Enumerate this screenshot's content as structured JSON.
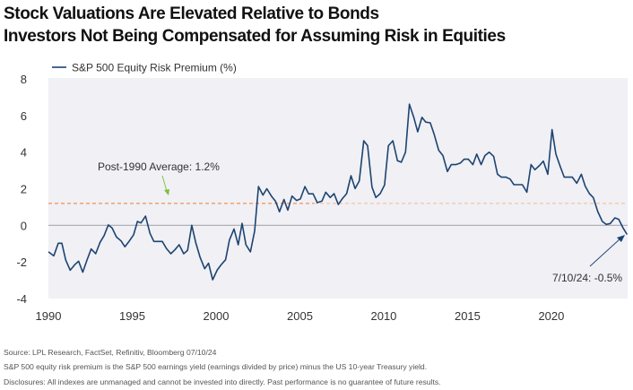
{
  "header": {
    "title": "Stock Valuations Are Elevated Relative to Bonds",
    "subtitle": "Investors Not Being Compensated for Assuming Risk in Equities"
  },
  "footer": {
    "source": "Source: LPL Research, FactSet, Refinitiv, Bloomberg 07/10/24",
    "note": "S&P 500 equity risk premium is the S&P 500 earnings yield (earnings divided by price) minus the US 10-year Treasury yield.",
    "disclosures": "Disclosures: All indexes are unmanaged and cannot be invested into directly. Past performance is no guarantee of future results."
  },
  "chart_data": {
    "type": "line",
    "xlim": [
      1990,
      2024.55
    ],
    "ylim": [
      -4,
      8
    ],
    "x_ticks": [
      "1990",
      "1995",
      "2000",
      "2005",
      "2010",
      "2015",
      "2020"
    ],
    "y_ticks": [
      "8",
      "6",
      "4",
      "2",
      "0",
      "-2",
      "-4"
    ],
    "grid": false,
    "legend_position": "top-left",
    "colors": {
      "series": "#1d4470",
      "average": "#f07a2a",
      "average_light": "#f5b98f",
      "zero": "#a8a8ae",
      "plot_bg": "#f0f0f5",
      "arrow_avg": "#7bbf3a"
    },
    "series": [
      {
        "name": "S&P 500 Equity Risk Premium (%)",
        "x": [
          1990.0,
          1990.32,
          1990.59,
          1990.8,
          1991.03,
          1991.3,
          1991.57,
          1991.8,
          1992.05,
          1992.3,
          1992.55,
          1992.82,
          1993.08,
          1993.32,
          1993.57,
          1993.8,
          1994.06,
          1994.33,
          1994.56,
          1994.83,
          1995.08,
          1995.31,
          1995.52,
          1995.79,
          1996.06,
          1996.29,
          1996.79,
          1997.04,
          1997.3,
          1997.54,
          1997.8,
          1998.07,
          1998.3,
          1998.55,
          1998.79,
          1999.05,
          1999.32,
          1999.55,
          1999.8,
          2000.07,
          2000.3,
          2000.57,
          2000.8,
          2001.07,
          2001.32,
          2001.55,
          2001.78,
          2002.05,
          2002.3,
          2002.53,
          2002.8,
          2003.03,
          2003.3,
          2003.55,
          2003.78,
          2004.05,
          2004.28,
          2004.53,
          2004.8,
          2005.03,
          2005.3,
          2005.52,
          2005.79,
          2006.04,
          2006.31,
          2006.54,
          2006.81,
          2007.04,
          2007.29,
          2007.52,
          2007.79,
          2008.05,
          2008.29,
          2008.54,
          2008.81,
          2009.04,
          2009.3,
          2009.53,
          2009.79,
          2010.05,
          2010.28,
          2010.55,
          2010.82,
          2011.05,
          2011.3,
          2011.53,
          2011.8,
          2012.03,
          2012.28,
          2012.51,
          2012.78,
          2013.01,
          2013.28,
          2013.53,
          2013.8,
          2014.03,
          2014.3,
          2014.57,
          2014.8,
          2015.05,
          2015.32,
          2015.55,
          2015.81,
          2016.04,
          2016.29,
          2016.56,
          2016.79,
          2017.02,
          2017.29,
          2017.54,
          2017.77,
          2018.27,
          2018.54,
          2018.79,
          2019.02,
          2019.29,
          2019.52,
          2019.79,
          2020.04,
          2020.27,
          2020.54,
          2020.77,
          2021.25,
          2021.52,
          2021.79,
          2022.02,
          2022.27,
          2022.5,
          2022.77,
          2023.04,
          2023.27,
          2023.52,
          2023.79,
          2024.02,
          2024.29,
          2024.52
        ],
        "y": [
          -1.45,
          -1.67,
          -0.98,
          -0.98,
          -1.9,
          -2.45,
          -2.15,
          -1.96,
          -2.56,
          -1.9,
          -1.29,
          -1.55,
          -0.93,
          -0.56,
          0.02,
          -0.15,
          -0.64,
          -0.85,
          -1.17,
          -0.85,
          -0.52,
          0.21,
          0.13,
          0.5,
          -0.44,
          -0.88,
          -0.88,
          -1.26,
          -1.55,
          -1.34,
          -1.06,
          -1.55,
          -1.37,
          0.0,
          -0.96,
          -1.75,
          -2.37,
          -2.07,
          -2.97,
          -2.44,
          -2.16,
          -1.88,
          -0.8,
          -0.2,
          -1.06,
          0.11,
          -1.06,
          -1.45,
          -0.31,
          2.12,
          1.65,
          2.0,
          1.6,
          1.31,
          0.74,
          1.41,
          0.83,
          1.6,
          1.36,
          1.44,
          2.12,
          1.72,
          1.72,
          1.24,
          1.32,
          1.81,
          1.52,
          1.73,
          1.14,
          1.44,
          1.73,
          2.71,
          2.01,
          2.42,
          4.62,
          4.35,
          2.09,
          1.52,
          1.73,
          2.2,
          4.35,
          4.62,
          3.53,
          3.45,
          4.0,
          6.62,
          5.88,
          5.11,
          5.9,
          5.64,
          5.6,
          4.98,
          4.1,
          3.81,
          2.94,
          3.32,
          3.32,
          3.4,
          3.61,
          3.61,
          3.32,
          3.89,
          3.32,
          3.81,
          4.0,
          3.77,
          2.79,
          2.63,
          2.63,
          2.53,
          2.22,
          2.22,
          1.81,
          3.32,
          3.04,
          3.27,
          3.51,
          2.79,
          5.23,
          3.89,
          3.19,
          2.63,
          2.63,
          2.3,
          2.79,
          2.14,
          1.73,
          1.52,
          0.75,
          0.21,
          0.05,
          0.1,
          0.41,
          0.33,
          -0.16,
          -0.5
        ]
      }
    ],
    "reference_lines": [
      {
        "y": 1.2,
        "label": "Post-1990 Average: 1.2%"
      },
      {
        "y": 0
      }
    ],
    "annotations": [
      {
        "text": "7/10/24: -0.5%",
        "x": 2024.52,
        "y": -0.5
      }
    ]
  }
}
